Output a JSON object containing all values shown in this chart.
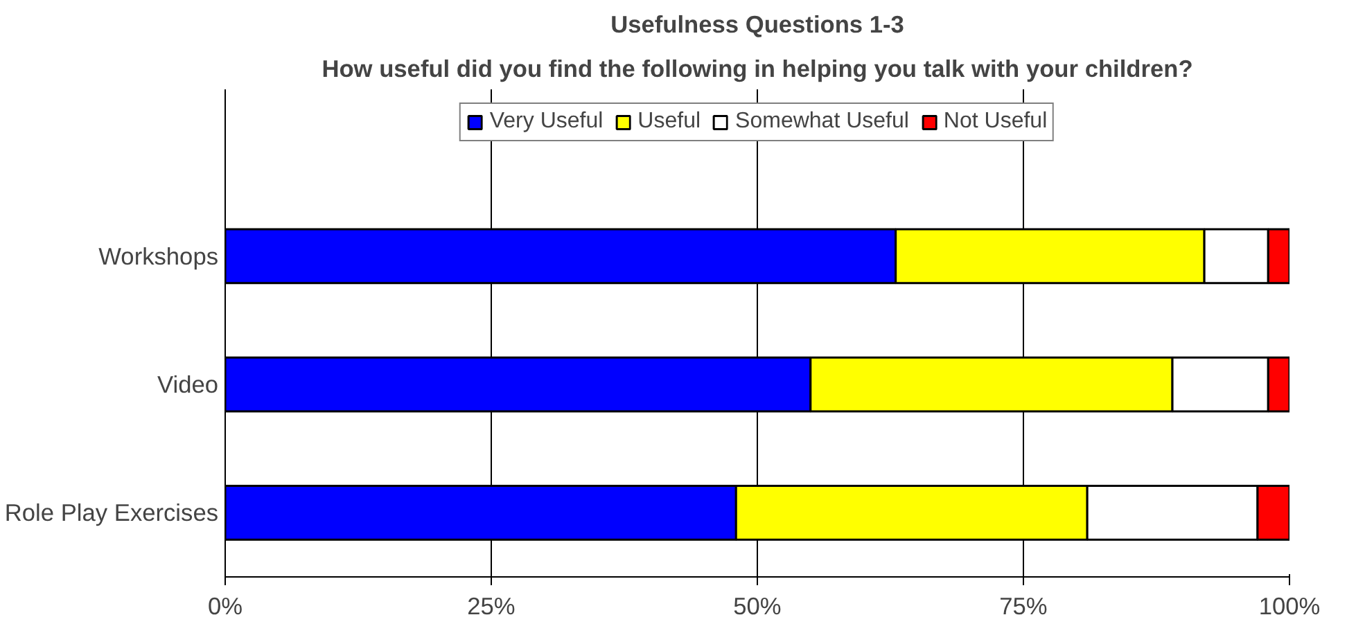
{
  "chart_data": {
    "type": "bar",
    "orientation": "horizontal",
    "stacked": true,
    "title": "Usefulness Questions 1-3",
    "subtitle": "How useful did you find the following in helping you talk with your children?",
    "categories": [
      "Workshops",
      "Video",
      "Role Play Exercises"
    ],
    "series": [
      {
        "name": "Very Useful",
        "color": "#0000ff",
        "values": [
          63,
          55,
          48
        ]
      },
      {
        "name": "Useful",
        "color": "#ffff00",
        "values": [
          29,
          34,
          33
        ]
      },
      {
        "name": "Somewhat Useful",
        "color": "#ffffff",
        "values": [
          6,
          9,
          16
        ]
      },
      {
        "name": "Not Useful",
        "color": "#ff0000",
        "values": [
          2,
          2,
          3
        ]
      }
    ],
    "xlim": [
      0,
      100
    ],
    "xticks": [
      {
        "value": 0,
        "label": "0%"
      },
      {
        "value": 25,
        "label": "25%"
      },
      {
        "value": 50,
        "label": "50%"
      },
      {
        "value": 75,
        "label": "75%"
      },
      {
        "value": 100,
        "label": "100%"
      }
    ],
    "grid": "x",
    "legend": "top"
  }
}
